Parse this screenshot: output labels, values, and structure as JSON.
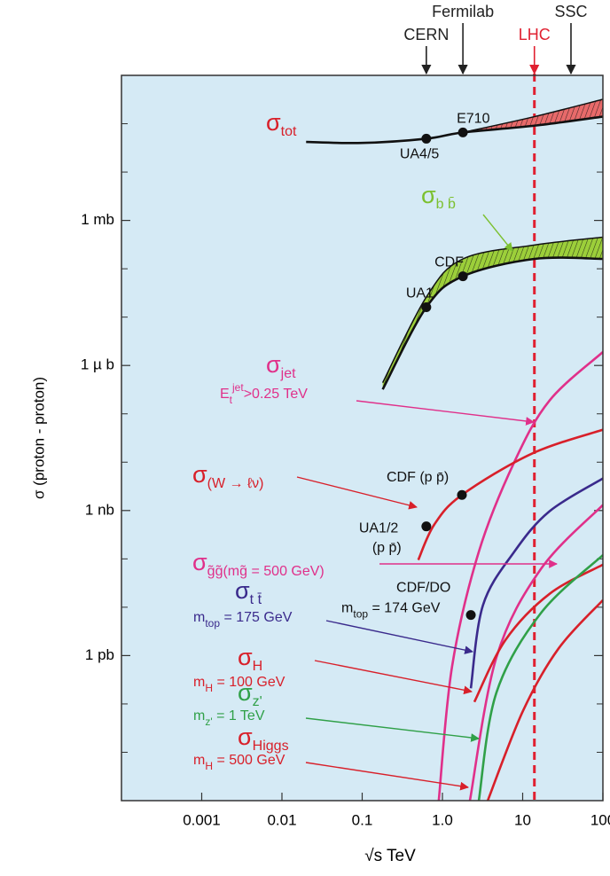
{
  "chart_data": {
    "type": "line",
    "xscale": "log",
    "yscale": "log",
    "x_label": "√s   TeV",
    "y_label": "σ  (proton - proton)",
    "xlim": [
      0.0001,
      100
    ],
    "ylim": [
      1e-12,
      1000
    ],
    "xticks": [
      0.001,
      0.01,
      0.1,
      {
        "value": 1,
        "label": "1.0"
      },
      10,
      100
    ],
    "yticks": [
      {
        "value": 1,
        "label": "1 mb"
      },
      {
        "value": 0.001,
        "label": "1 µ b"
      },
      {
        "value": 1e-06,
        "label": "1 nb"
      },
      {
        "value": 1e-09,
        "label": "1 pb"
      }
    ],
    "y_minor_ticks": [
      1e-11,
      1e-10,
      1e-08,
      1e-07,
      1e-05,
      0.0001,
      0.01,
      0.1,
      10,
      100
    ],
    "plot_color": "#d5eaf5",
    "accelerators": [
      {
        "name": "CERN",
        "x": 0.63,
        "color": "#222222"
      },
      {
        "name": "Fermilab",
        "x": 1.8,
        "color": "#222222"
      },
      {
        "name": "LHC",
        "x": 14,
        "color": "#e02030",
        "dashed": true
      },
      {
        "name": "SSC",
        "x": 40,
        "color": "#222222"
      }
    ],
    "series": [
      {
        "color": "#111111",
        "label_color": "#d8202a",
        "band_color": "#e86a6a",
        "x": [
          0.02,
          0.1,
          0.63,
          1.8,
          14,
          100
        ],
        "values": [
          42,
          40,
          49,
          66,
          91,
          140
        ],
        "upper": [
          null,
          null,
          null,
          66,
          140,
          320
        ],
        "label": [
          [
            {
              "text": "σ"
            },
            {
              "text": "tot",
              "style": "sub"
            }
          ]
        ]
      },
      {
        "color": "#111111",
        "label_color": "#7cc030",
        "band_color": "#9ccf3a",
        "x": [
          0.18,
          0.63,
          1.8,
          14,
          100
        ],
        "values": [
          0.00032,
          0.016,
          0.07,
          0.16,
          0.16
        ],
        "upper": [
          0.00044,
          0.026,
          0.16,
          0.31,
          0.45
        ],
        "label": [
          [
            {
              "text": "σ"
            },
            {
              "text": "b b̄",
              "style": "sub"
            }
          ]
        ]
      },
      {
        "color": "#e0308a",
        "x": [
          0.9,
          1.32,
          2.84,
          7.85,
          21.7,
          100
        ],
        "values": [
          1e-12,
          6e-10,
          1.4e-07,
          1e-05,
          0.00019,
          0.0019
        ],
        "label": [
          [
            {
              "text": "σ"
            },
            {
              "text": "jet",
              "style": "sub"
            }
          ],
          [
            {
              "text": "E"
            },
            {
              "text": "t",
              "style": "sub"
            },
            {
              "text": "jet",
              "style": "sup"
            },
            {
              "text": ">0.25 TeV"
            }
          ]
        ]
      },
      {
        "color": "#d8202a",
        "x": [
          0.5,
          0.79,
          1.75,
          13,
          100
        ],
        "values": [
          9.5e-08,
          5.1e-07,
          2.1e-06,
          1.5e-05,
          4.7e-05
        ],
        "label": [
          [
            {
              "text": "σ"
            },
            {
              "text": "(W → ℓν)",
              "style": "sub"
            }
          ]
        ]
      },
      {
        "color": "#e0308a",
        "x": [
          2.2,
          4.7,
          16.9,
          100
        ],
        "values": [
          1e-12,
          9.1e-10,
          6.2e-08,
          1.3e-06
        ],
        "label": [
          [
            {
              "text": "σ"
            },
            {
              "text": "g̃g̃",
              "style": "sub"
            },
            {
              "text": "(m",
              "style": "sub"
            },
            {
              "text": "g̃",
              "style": "sub"
            },
            {
              "text": " = 500 GeV)",
              "style": "sub"
            }
          ]
        ]
      },
      {
        "color": "#3a2a8c",
        "x": [
          2.26,
          3.2,
          7.85,
          21.7,
          100
        ],
        "values": [
          2.1e-10,
          1.1e-08,
          1.4e-07,
          9.7e-07,
          4.6e-06
        ],
        "label": [
          [
            {
              "text": "σ"
            },
            {
              "text": "t t̄",
              "style": "sub"
            }
          ],
          [
            {
              "text": "m"
            },
            {
              "text": "top",
              "style": "sub"
            },
            {
              "text": " = 175 GeV"
            }
          ]
        ]
      },
      {
        "color": "#d8202a",
        "x": [
          2.5,
          6.1,
          21.7,
          100
        ],
        "values": [
          1.1e-10,
          2.1e-09,
          1.9e-08,
          7.6e-08
        ],
        "label": [
          [
            {
              "text": "σ"
            },
            {
              "text": "H",
              "style": "sub"
            }
          ],
          [
            {
              "text": "m"
            },
            {
              "text": "H",
              "style": "sub"
            },
            {
              "text": " = 100 GeV"
            }
          ]
        ]
      },
      {
        "color": "#30a048",
        "x": [
          2.84,
          4.7,
          16.9,
          100
        ],
        "values": [
          1e-12,
          1.7e-10,
          7.6e-09,
          1.2e-07
        ],
        "label": [
          [
            {
              "text": "σ"
            },
            {
              "text": "z'",
              "style": "sub"
            }
          ],
          [
            {
              "text": "m"
            },
            {
              "text": "z'",
              "style": "sub"
            },
            {
              "text": " = 1 TeV"
            }
          ]
        ]
      },
      {
        "color": "#d8202a",
        "x": [
          3.67,
          10.1,
          28,
          100
        ],
        "values": [
          1e-12,
          7.2e-11,
          1.4e-09,
          1.4e-08
        ],
        "label": [
          [
            {
              "text": "σ"
            },
            {
              "text": "Higgs",
              "style": "sub"
            }
          ],
          [
            {
              "text": "m"
            },
            {
              "text": "H",
              "style": "sub"
            },
            {
              "text": " = 500 GeV"
            }
          ]
        ]
      }
    ],
    "points": [
      {
        "label": [
          [
            {
              "text": "UA4/5"
            }
          ]
        ],
        "x": 0.63,
        "y": 49
      },
      {
        "label": [
          [
            {
              "text": "E710"
            }
          ]
        ],
        "x": 1.8,
        "y": 66
      },
      {
        "label": [
          [
            {
              "text": "CDF"
            }
          ]
        ],
        "x": 1.8,
        "y": 0.07
      },
      {
        "label": [
          [
            {
              "text": "UA1"
            }
          ]
        ],
        "x": 0.63,
        "y": 0.016
      },
      {
        "label": [
          [
            {
              "text": "CDF (p p̄)"
            }
          ]
        ],
        "x": 1.75,
        "y": 2.1e-06
      },
      {
        "label": [
          [
            {
              "text": "UA1/2"
            }
          ],
          [
            {
              "text": "(p p̄)"
            }
          ]
        ],
        "x": 0.63,
        "y": 4.7e-07
      },
      {
        "label": [
          [
            {
              "text": "CDF/DO"
            }
          ],
          [
            {
              "text": "m"
            },
            {
              "text": "top",
              "style": "sub"
            },
            {
              "text": " = 174 GeV"
            }
          ]
        ],
        "x": 2.26,
        "y": 6.9e-09
      }
    ]
  }
}
